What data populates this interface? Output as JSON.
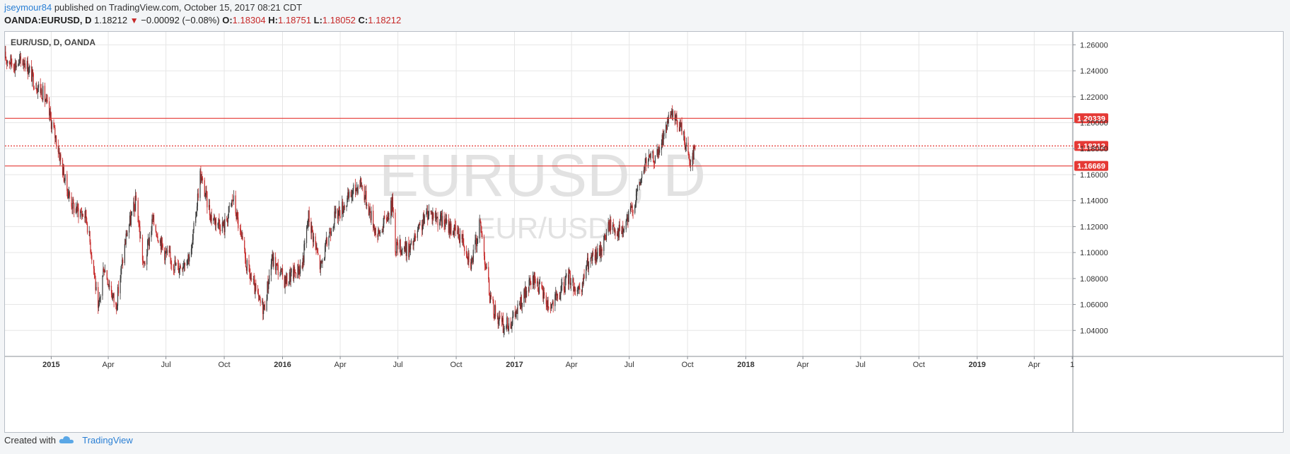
{
  "header": {
    "author": "jseymour84",
    "published_text": "published on TradingView.com, October 15, 2017 08:21 CDT",
    "symbol": "OANDA:EURUSD, D",
    "last": "1.18212",
    "change": "−0.00092 (−0.08%)",
    "open_label": "O:",
    "open": "1.18304",
    "high_label": "H:",
    "high": "1.18751",
    "low_label": "L:",
    "low": "1.18052",
    "close_label": "C:",
    "close": "1.18212"
  },
  "footer": {
    "created_with": "Created with",
    "brand": "TradingView"
  },
  "colors": {
    "up": "#3a3a3a",
    "down": "#c62828",
    "line": "#e53935",
    "grid": "#e6e6e6",
    "axis_text": "#333333",
    "watermark": "#e2e2e2"
  },
  "chart_data": {
    "type": "candlestick",
    "title": "EUR/USD, D, OANDA",
    "watermark_symbol": "EURUSD, D",
    "watermark_name": "EUR/USD",
    "x_range": [
      "2014-10-20",
      "2019-06-01"
    ],
    "ylim": [
      1.02,
      1.27
    ],
    "y_ticks": [
      1.04,
      1.06,
      1.08,
      1.1,
      1.12,
      1.14,
      1.16,
      1.18,
      1.2,
      1.22,
      1.24,
      1.26
    ],
    "y_tick_labels": [
      "1.04000",
      "1.06000",
      "1.08000",
      "1.10000",
      "1.12000",
      "1.14000",
      "1.16000",
      "1.18000",
      "1.20000",
      "1.22000",
      "1.24000",
      "1.26000"
    ],
    "x_ticks": [
      {
        "date": "2015-01-01",
        "label": "2015",
        "bold": true
      },
      {
        "date": "2015-04-01",
        "label": "Apr",
        "bold": false
      },
      {
        "date": "2015-07-01",
        "label": "Jul",
        "bold": false
      },
      {
        "date": "2015-10-01",
        "label": "Oct",
        "bold": false
      },
      {
        "date": "2016-01-01",
        "label": "2016",
        "bold": true
      },
      {
        "date": "2016-04-01",
        "label": "Apr",
        "bold": false
      },
      {
        "date": "2016-07-01",
        "label": "Jul",
        "bold": false
      },
      {
        "date": "2016-10-01",
        "label": "Oct",
        "bold": false
      },
      {
        "date": "2017-01-01",
        "label": "2017",
        "bold": true
      },
      {
        "date": "2017-04-01",
        "label": "Apr",
        "bold": false
      },
      {
        "date": "2017-07-01",
        "label": "Jul",
        "bold": false
      },
      {
        "date": "2017-10-01",
        "label": "Oct",
        "bold": false
      },
      {
        "date": "2018-01-01",
        "label": "2018",
        "bold": true
      },
      {
        "date": "2018-04-01",
        "label": "Apr",
        "bold": false
      },
      {
        "date": "2018-07-01",
        "label": "Jul",
        "bold": false
      },
      {
        "date": "2018-10-01",
        "label": "Oct",
        "bold": false
      },
      {
        "date": "2019-01-01",
        "label": "2019",
        "bold": true
      },
      {
        "date": "2019-04-01",
        "label": "Apr",
        "bold": false
      },
      {
        "date": "2019-05-31",
        "label": "1",
        "bold": false
      }
    ],
    "horizontal_lines": [
      {
        "value": 1.20339,
        "label": "1.20339",
        "style": "solid"
      },
      {
        "value": 1.18212,
        "label": "1.18212",
        "style": "dotted"
      },
      {
        "value": 1.16669,
        "label": "1.16669",
        "style": "solid"
      }
    ],
    "price_path": [
      [
        "2014-10-20",
        1.25
      ],
      [
        "2014-11-05",
        1.245
      ],
      [
        "2014-11-20",
        1.248
      ],
      [
        "2014-12-05",
        1.232
      ],
      [
        "2014-12-20",
        1.222
      ],
      [
        "2015-01-10",
        1.185
      ],
      [
        "2015-01-25",
        1.15
      ],
      [
        "2015-02-05",
        1.135
      ],
      [
        "2015-02-25",
        1.128
      ],
      [
        "2015-03-10",
        1.085
      ],
      [
        "2015-03-16",
        1.052
      ],
      [
        "2015-03-25",
        1.09
      ],
      [
        "2015-04-13",
        1.058
      ],
      [
        "2015-04-30",
        1.115
      ],
      [
        "2015-05-15",
        1.14
      ],
      [
        "2015-05-27",
        1.088
      ],
      [
        "2015-06-10",
        1.125
      ],
      [
        "2015-06-29",
        1.1
      ],
      [
        "2015-07-20",
        1.088
      ],
      [
        "2015-08-10",
        1.1
      ],
      [
        "2015-08-24",
        1.16
      ],
      [
        "2015-09-10",
        1.128
      ],
      [
        "2015-10-01",
        1.12
      ],
      [
        "2015-10-15",
        1.142
      ],
      [
        "2015-11-05",
        1.09
      ],
      [
        "2015-11-25",
        1.062
      ],
      [
        "2015-12-03",
        1.057
      ],
      [
        "2015-12-15",
        1.095
      ],
      [
        "2016-01-05",
        1.078
      ],
      [
        "2016-02-01",
        1.09
      ],
      [
        "2016-02-11",
        1.128
      ],
      [
        "2016-03-01",
        1.088
      ],
      [
        "2016-03-20",
        1.125
      ],
      [
        "2016-04-12",
        1.14
      ],
      [
        "2016-05-03",
        1.155
      ],
      [
        "2016-05-30",
        1.112
      ],
      [
        "2016-06-23",
        1.138
      ],
      [
        "2016-06-27",
        1.105
      ],
      [
        "2016-07-20",
        1.102
      ],
      [
        "2016-08-18",
        1.132
      ],
      [
        "2016-09-15",
        1.122
      ],
      [
        "2016-10-10",
        1.112
      ],
      [
        "2016-10-25",
        1.092
      ],
      [
        "2016-11-08",
        1.122
      ],
      [
        "2016-11-25",
        1.06
      ],
      [
        "2016-12-15",
        1.042
      ],
      [
        "2016-12-31",
        1.05
      ],
      [
        "2017-01-20",
        1.07
      ],
      [
        "2017-02-02",
        1.08
      ],
      [
        "2017-02-25",
        1.058
      ],
      [
        "2017-03-10",
        1.065
      ],
      [
        "2017-03-28",
        1.082
      ],
      [
        "2017-04-15",
        1.065
      ],
      [
        "2017-04-24",
        1.09
      ],
      [
        "2017-05-15",
        1.1
      ],
      [
        "2017-05-31",
        1.122
      ],
      [
        "2017-06-20",
        1.115
      ],
      [
        "2017-07-10",
        1.14
      ],
      [
        "2017-07-27",
        1.17
      ],
      [
        "2017-08-15",
        1.175
      ],
      [
        "2017-08-29",
        1.198
      ],
      [
        "2017-09-08",
        1.205
      ],
      [
        "2017-09-22",
        1.195
      ],
      [
        "2017-10-05",
        1.17
      ],
      [
        "2017-10-13",
        1.182
      ]
    ]
  }
}
